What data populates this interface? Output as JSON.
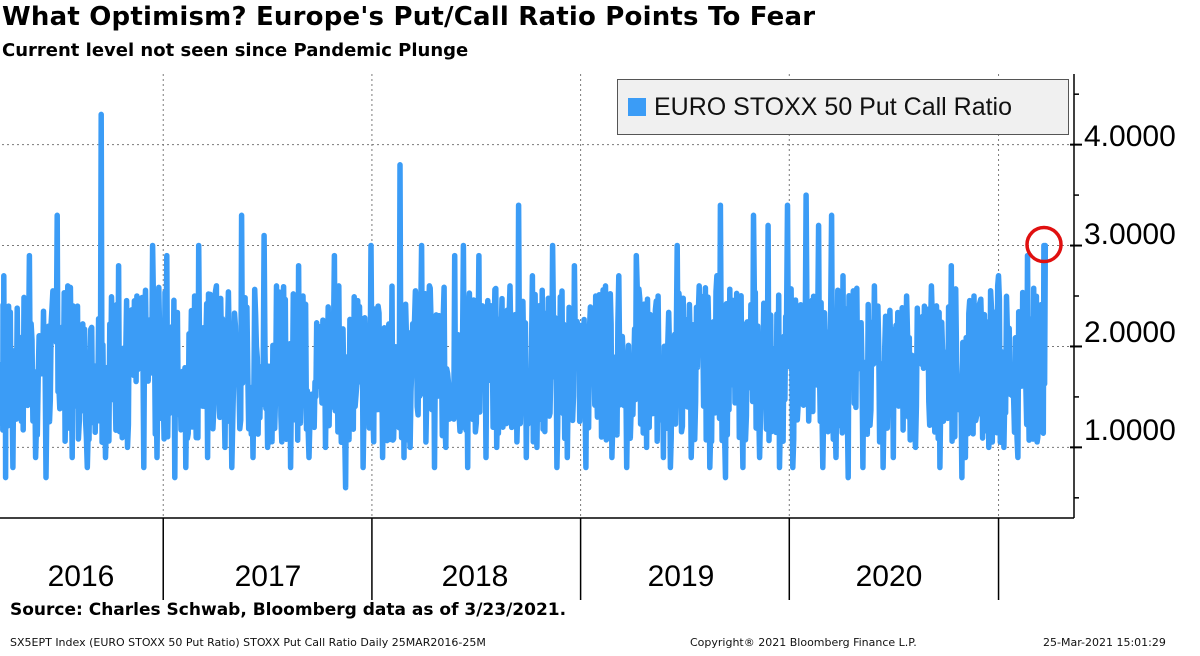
{
  "header": {
    "title": "What Optimism? Europe's Put/Call Ratio Points To Fear",
    "subtitle": "Current level not seen since Pandemic Plunge"
  },
  "legend": {
    "label": "EURO STOXX 50 Put Call Ratio"
  },
  "source": "Source: Charles Schwab, Bloomberg data as of 3/23/2021.",
  "footer": {
    "left": "SX5EPT Index (EURO STOXX 50 Put Ratio) STOXX Put Call Ratio  Daily 25MAR2016-25M",
    "center": "Copyright® 2021 Bloomberg Finance L.P.",
    "right": "25-Mar-2021 15:01:29"
  },
  "colors": {
    "series": "#3b9cf6",
    "highlight_circle": "#e01010",
    "gridline": "#7a7a7a"
  },
  "chart_data": {
    "type": "line",
    "title": "What Optimism? Europe's Put/Call Ratio Points To Fear",
    "subtitle": "Current level not seen since Pandemic Plunge",
    "x_range": [
      "2016-03-25",
      "2021-03-25"
    ],
    "year_labels": [
      "2016",
      "2017",
      "2018",
      "2019",
      "2020"
    ],
    "ylim": [
      0.3,
      4.7
    ],
    "yticks": [
      {
        "value": 1,
        "label": "1.0000"
      },
      {
        "value": 2,
        "label": "2.0000"
      },
      {
        "value": 3,
        "label": "3.0000"
      },
      {
        "value": 4,
        "label": "4.0000"
      }
    ],
    "y_axis_side": "right",
    "grid": true,
    "legend_position": "top-right",
    "series": [
      {
        "name": "EURO STOXX 50 Put Call Ratio",
        "color": "#3b9cf6",
        "x": [
          "2016-03",
          "2016-04",
          "2016-05",
          "2016-06",
          "2016-07",
          "2016-08",
          "2016-09",
          "2016-10",
          "2016-11",
          "2016-12",
          "2017-01",
          "2017-02",
          "2017-03",
          "2017-04",
          "2017-05",
          "2017-06",
          "2017-07",
          "2017-08",
          "2017-09",
          "2017-10",
          "2017-11",
          "2017-12",
          "2018-01",
          "2018-02",
          "2018-03",
          "2018-04",
          "2018-05",
          "2018-06",
          "2018-07",
          "2018-08",
          "2018-09",
          "2018-10",
          "2018-11",
          "2018-12",
          "2019-01",
          "2019-02",
          "2019-03",
          "2019-04",
          "2019-05",
          "2019-06",
          "2019-07",
          "2019-08",
          "2019-09",
          "2019-10",
          "2019-11",
          "2019-12",
          "2020-01",
          "2020-02",
          "2020-03",
          "2020-04",
          "2020-05",
          "2020-06",
          "2020-07",
          "2020-08",
          "2020-09",
          "2020-10",
          "2020-11",
          "2020-12",
          "2021-01",
          "2021-02",
          "2021-03"
        ],
        "high": [
          2.7,
          2.4,
          2.9,
          3.3,
          2.6,
          2.4,
          4.3,
          2.8,
          2.5,
          3.0,
          2.9,
          2.5,
          3.0,
          2.6,
          3.3,
          3.1,
          2.6,
          2.8,
          2.5,
          2.9,
          2.6,
          3.0,
          2.4,
          3.8,
          3.0,
          2.6,
          2.9,
          3.0,
          2.9,
          2.6,
          3.4,
          2.7,
          3.0,
          2.8,
          2.5,
          2.6,
          2.7,
          2.9,
          2.5,
          3.0,
          2.6,
          2.7,
          3.4,
          3.3,
          3.2,
          3.4,
          3.5,
          3.2,
          3.3,
          2.7,
          2.6,
          2.4,
          2.5,
          2.4,
          2.6,
          2.8,
          2.5,
          2.6,
          2.7,
          2.9,
          3.0
        ],
        "low": [
          0.7,
          0.8,
          0.9,
          0.7,
          0.9,
          0.8,
          0.9,
          1.0,
          0.8,
          0.9,
          0.7,
          0.8,
          0.9,
          1.0,
          0.8,
          0.9,
          1.0,
          0.8,
          0.9,
          1.0,
          0.6,
          0.8,
          0.9,
          0.9,
          1.0,
          0.8,
          1.0,
          0.8,
          0.9,
          1.0,
          0.9,
          1.0,
          0.8,
          0.9,
          0.8,
          0.9,
          0.8,
          1.0,
          0.9,
          0.8,
          0.9,
          0.8,
          0.7,
          0.8,
          0.9,
          0.8,
          0.8,
          0.8,
          0.9,
          0.7,
          0.8,
          0.8,
          0.9,
          1.0,
          0.8,
          0.7,
          0.9,
          1.0,
          1.0,
          0.9,
          1.1
        ],
        "last": 3.0
      }
    ]
  }
}
